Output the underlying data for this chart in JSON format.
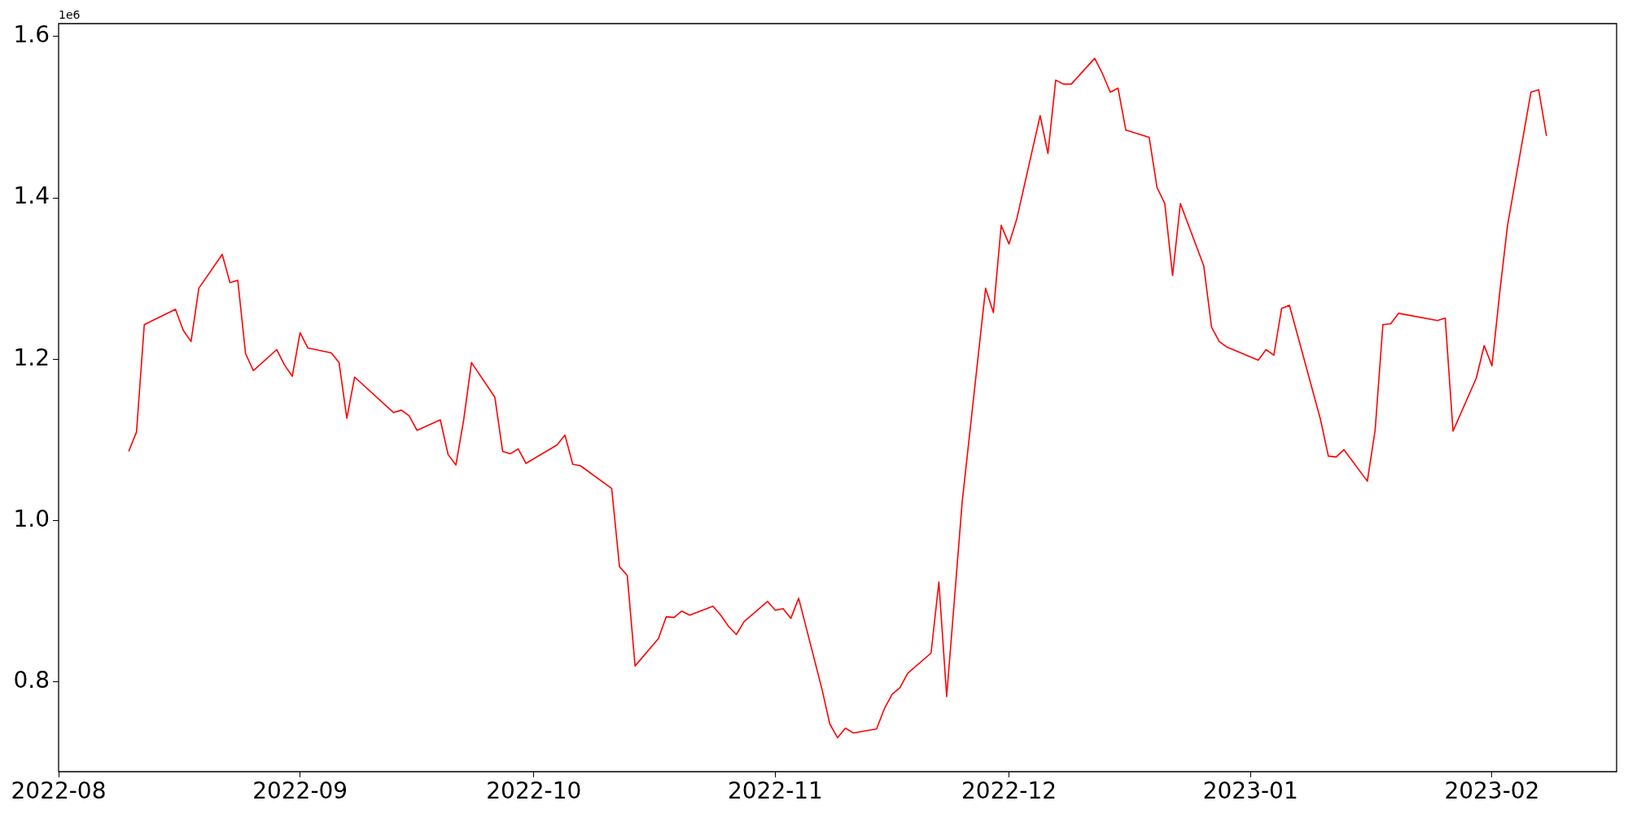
{
  "chart_data": {
    "type": "line",
    "annotations": [
      "1e6"
    ],
    "x": [
      "2022-08-10",
      "2022-08-11",
      "2022-08-12",
      "2022-08-16",
      "2022-08-17",
      "2022-08-18",
      "2022-08-19",
      "2022-08-22",
      "2022-08-23",
      "2022-08-24",
      "2022-08-25",
      "2022-08-26",
      "2022-08-29",
      "2022-08-30",
      "2022-08-31",
      "2022-09-01",
      "2022-09-02",
      "2022-09-05",
      "2022-09-06",
      "2022-09-07",
      "2022-09-08",
      "2022-09-13",
      "2022-09-14",
      "2022-09-15",
      "2022-09-16",
      "2022-09-19",
      "2022-09-20",
      "2022-09-21",
      "2022-09-22",
      "2022-09-23",
      "2022-09-26",
      "2022-09-27",
      "2022-09-28",
      "2022-09-29",
      "2022-09-30",
      "2022-10-04",
      "2022-10-05",
      "2022-10-06",
      "2022-10-07",
      "2022-10-11",
      "2022-10-12",
      "2022-10-13",
      "2022-10-14",
      "2022-10-17",
      "2022-10-18",
      "2022-10-19",
      "2022-10-20",
      "2022-10-21",
      "2022-10-24",
      "2022-10-25",
      "2022-10-26",
      "2022-10-27",
      "2022-10-28",
      "2022-10-31",
      "2022-11-01",
      "2022-11-02",
      "2022-11-03",
      "2022-11-04",
      "2022-11-07",
      "2022-11-08",
      "2022-11-09",
      "2022-11-10",
      "2022-11-11",
      "2022-11-14",
      "2022-11-15",
      "2022-11-16",
      "2022-11-17",
      "2022-11-18",
      "2022-11-21",
      "2022-11-22",
      "2022-11-23",
      "2022-11-25",
      "2022-11-28",
      "2022-11-29",
      "2022-11-30",
      "2022-12-01",
      "2022-12-02",
      "2022-12-05",
      "2022-12-06",
      "2022-12-07",
      "2022-12-08",
      "2022-12-09",
      "2022-12-12",
      "2022-12-13",
      "2022-12-14",
      "2022-12-15",
      "2022-12-16",
      "2022-12-19",
      "2022-12-20",
      "2022-12-21",
      "2022-12-22",
      "2022-12-23",
      "2022-12-26",
      "2022-12-27",
      "2022-12-28",
      "2022-12-29",
      "2023-01-02",
      "2023-01-03",
      "2023-01-04",
      "2023-01-05",
      "2023-01-06",
      "2023-01-10",
      "2023-01-11",
      "2023-01-12",
      "2023-01-13",
      "2023-01-16",
      "2023-01-17",
      "2023-01-18",
      "2023-01-19",
      "2023-01-20",
      "2023-01-25",
      "2023-01-26",
      "2023-01-27",
      "2023-01-30",
      "2023-01-31",
      "2023-02-01",
      "2023-02-02",
      "2023-02-03",
      "2023-02-06",
      "2023-02-07",
      "2023-02-08"
    ],
    "series": [
      {
        "color": "#ff0000",
        "values": [
          1.086,
          1.11,
          1.243,
          1.262,
          1.236,
          1.222,
          1.288,
          1.33,
          1.295,
          1.298,
          1.207,
          1.186,
          1.212,
          1.193,
          1.179,
          1.233,
          1.214,
          1.208,
          1.196,
          1.127,
          1.178,
          1.134,
          1.137,
          1.13,
          1.112,
          1.125,
          1.082,
          1.069,
          1.125,
          1.196,
          1.153,
          1.086,
          1.083,
          1.089,
          1.071,
          1.094,
          1.106,
          1.07,
          1.068,
          1.04,
          0.943,
          0.932,
          0.82,
          0.854,
          0.881,
          0.88,
          0.888,
          0.883,
          0.894,
          0.883,
          0.869,
          0.859,
          0.875,
          0.9,
          0.889,
          0.891,
          0.879,
          0.904,
          0.791,
          0.748,
          0.731,
          0.743,
          0.737,
          0.742,
          0.767,
          0.785,
          0.793,
          0.811,
          0.836,
          0.924,
          0.782,
          1.024,
          1.288,
          1.258,
          1.366,
          1.343,
          1.374,
          1.502,
          1.455,
          1.546,
          1.541,
          1.541,
          1.573,
          1.554,
          1.531,
          1.536,
          1.484,
          1.475,
          1.413,
          1.393,
          1.304,
          1.393,
          1.316,
          1.24,
          1.222,
          1.215,
          1.199,
          1.212,
          1.205,
          1.263,
          1.267,
          1.125,
          1.08,
          1.079,
          1.088,
          1.049,
          1.112,
          1.243,
          1.244,
          1.257,
          1.248,
          1.251,
          1.111,
          1.177,
          1.217,
          1.192,
          1.283,
          1.366,
          1.531,
          1.534,
          1.477
        ]
      }
    ],
    "xlim": [
      "2022-08-01",
      "2023-02-17"
    ],
    "xticks": [
      "2022-08",
      "2022-09",
      "2022-10",
      "2022-11",
      "2022-12",
      "2023-01",
      "2023-02"
    ],
    "ylim": [
      0.689,
      1.616
    ],
    "yticks": [
      {
        "value": 0.8,
        "label": "0.8"
      },
      {
        "value": 1.0,
        "label": "1.0"
      },
      {
        "value": 1.2,
        "label": "1.2"
      },
      {
        "value": 1.4,
        "label": "1.4"
      },
      {
        "value": 1.6,
        "label": "1.6"
      }
    ]
  }
}
